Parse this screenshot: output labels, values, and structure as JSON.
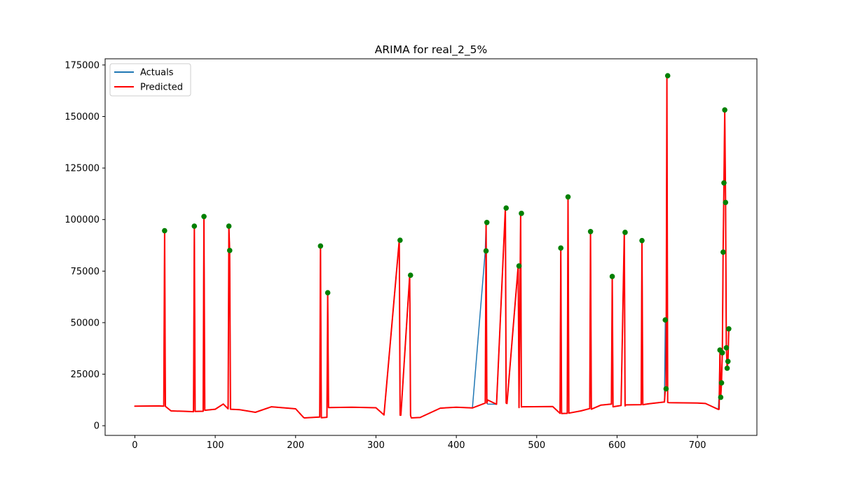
{
  "chart_data": {
    "type": "line",
    "title": "ARIMA for real_2_5%",
    "xlabel": "",
    "ylabel": "",
    "xlim": [
      -37,
      774
    ],
    "ylim": [
      -4700,
      178000
    ],
    "x_ticks": [
      0,
      100,
      200,
      300,
      400,
      500,
      600,
      700
    ],
    "y_ticks": [
      0,
      25000,
      50000,
      75000,
      100000,
      125000,
      150000,
      175000
    ],
    "x_tick_labels": [
      "0",
      "100",
      "200",
      "300",
      "400",
      "500",
      "600",
      "700"
    ],
    "y_tick_labels": [
      "0",
      "25000",
      "50000",
      "75000",
      "100000",
      "125000",
      "150000",
      "175000"
    ],
    "grid": false,
    "legend_position": "upper-left",
    "legend": [
      {
        "label": "Actuals",
        "color": "#1f77b4"
      },
      {
        "label": "Predicted",
        "color": "#ff0000"
      }
    ],
    "series": [
      {
        "name": "Actuals",
        "color": "#1f77b4",
        "x": [
          0,
          30,
          36,
          37,
          38,
          45,
          60,
          73,
          74,
          75,
          85,
          86,
          87,
          100,
          110,
          116,
          117,
          118,
          119,
          130,
          150,
          170,
          200,
          210,
          211,
          230,
          231,
          232,
          239,
          240,
          241,
          270,
          300,
          310,
          329,
          330,
          331,
          342,
          343,
          344,
          355,
          380,
          400,
          420,
          436,
          437,
          438,
          439,
          450,
          461,
          462,
          463,
          477,
          478,
          480,
          481,
          482,
          520,
          529,
          530,
          531,
          538,
          539,
          540,
          555,
          566,
          567,
          568,
          580,
          593,
          594,
          595,
          605,
          609,
          610,
          611,
          630,
          631,
          632,
          640,
          659,
          660,
          661,
          662,
          663,
          665,
          700,
          710,
          726,
          727,
          728,
          729,
          730,
          731,
          732,
          733,
          734,
          735,
          736,
          737,
          738,
          739
        ],
        "y": [
          9500,
          9600,
          9500,
          94600,
          9400,
          7200,
          7000,
          6800,
          96800,
          6900,
          7000,
          101500,
          7500,
          8000,
          10500,
          8200,
          96800,
          85000,
          8000,
          7800,
          6500,
          9200,
          8200,
          4000,
          3800,
          4200,
          87200,
          3900,
          4100,
          64500,
          8800,
          9000,
          8700,
          5200,
          90000,
          5100,
          5100,
          73000,
          5000,
          3800,
          4000,
          8500,
          9000,
          8600,
          84800,
          98600,
          11000,
          10500,
          10400,
          105600,
          11000,
          10800,
          77500,
          8800,
          103000,
          9100,
          9200,
          9300,
          6000,
          86200,
          5900,
          6000,
          111000,
          6100,
          7200,
          8300,
          94200,
          8000,
          10000,
          10500,
          72400,
          9200,
          9800,
          93800,
          9600,
          10100,
          10200,
          89800,
          10200,
          10700,
          11500,
          51300,
          17900,
          169800,
          11300,
          11200,
          11000,
          10800,
          7900,
          14800,
          36700,
          13800,
          20800,
          35400,
          84200,
          117800,
          153200,
          108300,
          37800,
          27900,
          31200,
          47000
        ]
      },
      {
        "name": "Predicted",
        "color": "#ff0000",
        "x": [
          0,
          30,
          36,
          37,
          38,
          45,
          60,
          73,
          74,
          75,
          85,
          86,
          87,
          100,
          110,
          116,
          117,
          118,
          119,
          130,
          150,
          170,
          200,
          210,
          211,
          230,
          231,
          232,
          239,
          240,
          241,
          270,
          300,
          310,
          329,
          330,
          331,
          342,
          343,
          344,
          355,
          380,
          400,
          420,
          436,
          437,
          438,
          439,
          450,
          461,
          462,
          463,
          477,
          478,
          480,
          481,
          482,
          520,
          529,
          530,
          531,
          538,
          539,
          540,
          555,
          566,
          567,
          568,
          580,
          593,
          594,
          595,
          605,
          609,
          610,
          611,
          630,
          631,
          632,
          640,
          659,
          660,
          661,
          662,
          663,
          665,
          700,
          710,
          726,
          727,
          728,
          729,
          730,
          731,
          732,
          733,
          734,
          735,
          736,
          737,
          738,
          739
        ],
        "y": [
          9500,
          9600,
          9500,
          94600,
          9400,
          7200,
          7000,
          6800,
          96800,
          6900,
          7000,
          101500,
          7500,
          8000,
          10500,
          8200,
          96800,
          85000,
          8000,
          7800,
          6500,
          9200,
          8200,
          4000,
          3800,
          4200,
          87200,
          3900,
          4100,
          64500,
          8800,
          9000,
          8700,
          5200,
          90000,
          5100,
          5100,
          73000,
          5000,
          3800,
          4000,
          8500,
          9000,
          8600,
          11000,
          98600,
          11000,
          12500,
          10400,
          105600,
          11000,
          10800,
          77500,
          8800,
          103000,
          9100,
          9200,
          9300,
          6000,
          86200,
          5900,
          6000,
          111000,
          6100,
          7200,
          8300,
          94200,
          8000,
          10000,
          10500,
          72400,
          9200,
          9800,
          93800,
          9600,
          10100,
          10200,
          89800,
          10200,
          10700,
          11500,
          18000,
          17900,
          169800,
          11300,
          11200,
          11000,
          10800,
          7900,
          8000,
          36700,
          13800,
          20800,
          35400,
          84200,
          117800,
          153200,
          108300,
          37800,
          27900,
          31200,
          47000
        ]
      }
    ],
    "markers": {
      "color": "#008000",
      "x": [
        37,
        74,
        86,
        117,
        118,
        231,
        240,
        330,
        343,
        437,
        438,
        462,
        478,
        481,
        530,
        539,
        567,
        594,
        610,
        631,
        660,
        661,
        663,
        728,
        729,
        730,
        731,
        732,
        733,
        734,
        735,
        736,
        737,
        738,
        739
      ],
      "y": [
        94600,
        96800,
        101500,
        96800,
        85000,
        87200,
        64500,
        90000,
        73000,
        84800,
        98600,
        105600,
        77500,
        103000,
        86200,
        111000,
        94200,
        72400,
        93800,
        89800,
        51300,
        17900,
        169800,
        36700,
        13800,
        20800,
        35400,
        84200,
        117800,
        153200,
        108300,
        37800,
        27900,
        31200,
        47000
      ]
    }
  }
}
